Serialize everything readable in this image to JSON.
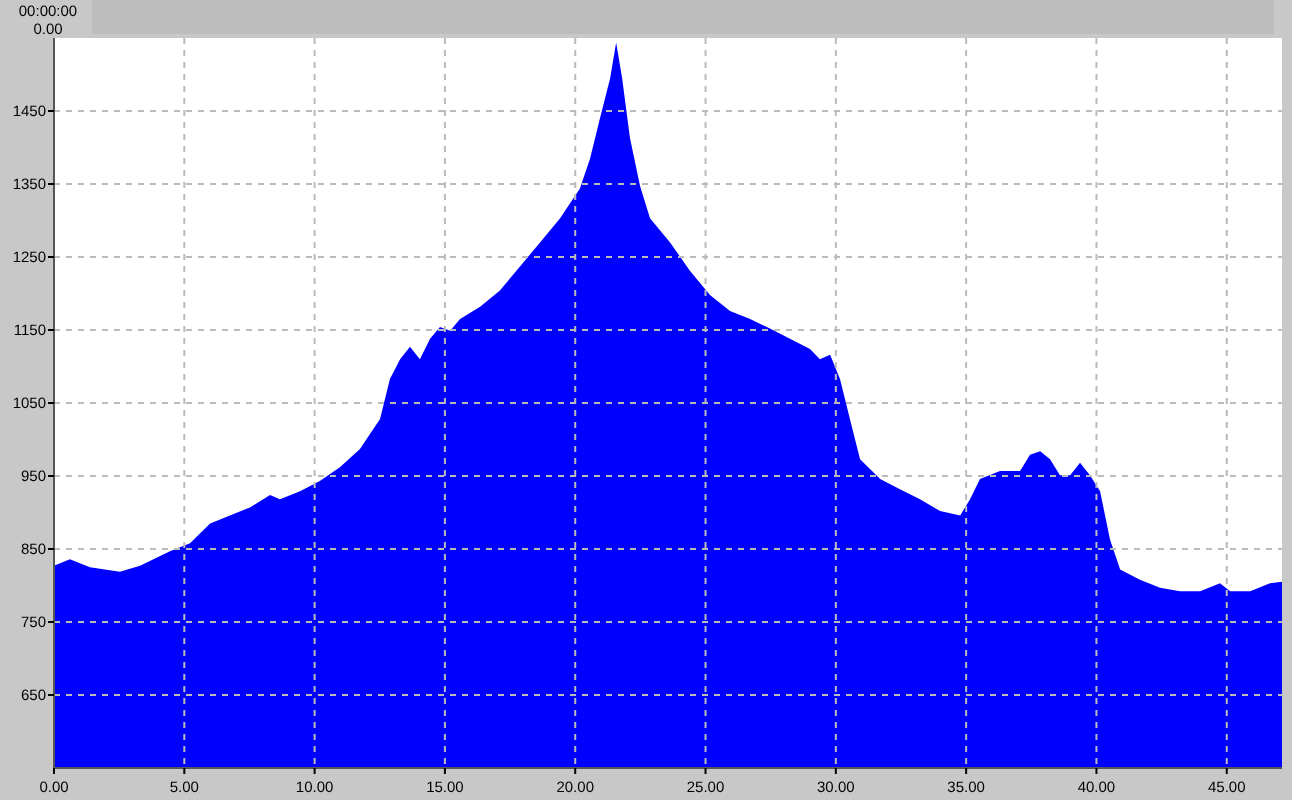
{
  "chart_data": {
    "type": "area",
    "color": "#0000ff",
    "annotations": [
      "00:00:00",
      "0.00"
    ],
    "x": [
      0,
      0.61,
      1.38,
      2.53,
      3.3,
      4.45,
      5.22,
      5.99,
      6.75,
      7.52,
      8.29,
      8.67,
      9.44,
      10.2,
      10.97,
      11.74,
      12.51,
      12.89,
      13.28,
      13.66,
      14.04,
      14.43,
      14.81,
      15.2,
      15.58,
      16.35,
      17.11,
      17.88,
      18.65,
      19.42,
      20.18,
      20.57,
      20.95,
      21.34,
      21.57,
      21.8,
      22.1,
      22.49,
      22.87,
      23.64,
      24.4,
      25.17,
      25.94,
      26.71,
      27.47,
      28.24,
      29.01,
      29.39,
      29.78,
      30.16,
      30.54,
      30.93,
      31.7,
      32.46,
      33.23,
      34,
      34.77,
      35.15,
      35.53,
      36.3,
      37.07,
      37.45,
      37.84,
      38.22,
      38.6,
      38.99,
      39.37,
      39.75,
      40.14,
      40.52,
      40.91,
      41.67,
      42.44,
      43.21,
      43.98,
      44.74,
      45.13,
      45.9,
      46.66,
      47.12
    ],
    "values": [
      827,
      836,
      825,
      819,
      827,
      847,
      858,
      885,
      896,
      907,
      924,
      918,
      929,
      943,
      962,
      987,
      1028,
      1083,
      1110,
      1127,
      1110,
      1138,
      1154,
      1149,
      1165,
      1182,
      1204,
      1237,
      1270,
      1303,
      1344,
      1385,
      1440,
      1495,
      1544,
      1495,
      1413,
      1347,
      1303,
      1270,
      1231,
      1198,
      1176,
      1165,
      1152,
      1138,
      1124,
      1110,
      1116,
      1083,
      1028,
      973,
      946,
      932,
      918,
      902,
      896,
      918,
      946,
      957,
      957,
      979,
      984,
      973,
      951,
      951,
      968,
      951,
      929,
      863,
      822,
      808,
      797,
      792,
      792,
      803,
      792,
      792,
      803,
      805
    ],
    "xlim": [
      0,
      47.12
    ],
    "ylim": [
      550,
      1550
    ],
    "xticks": [
      {
        "value": 0,
        "label": "0.00"
      },
      {
        "value": 5,
        "label": "5.00"
      },
      {
        "value": 10,
        "label": "10.00"
      },
      {
        "value": 15,
        "label": "15.00"
      },
      {
        "value": 20,
        "label": "20.00"
      },
      {
        "value": 25,
        "label": "25.00"
      },
      {
        "value": 30,
        "label": "30.00"
      },
      {
        "value": 35,
        "label": "35.00"
      },
      {
        "value": 40,
        "label": "40.00"
      },
      {
        "value": 45,
        "label": "45.00"
      }
    ],
    "yticks": [
      650,
      750,
      850,
      950,
      1050,
      1150,
      1250,
      1350,
      1450
    ],
    "grid": true
  }
}
